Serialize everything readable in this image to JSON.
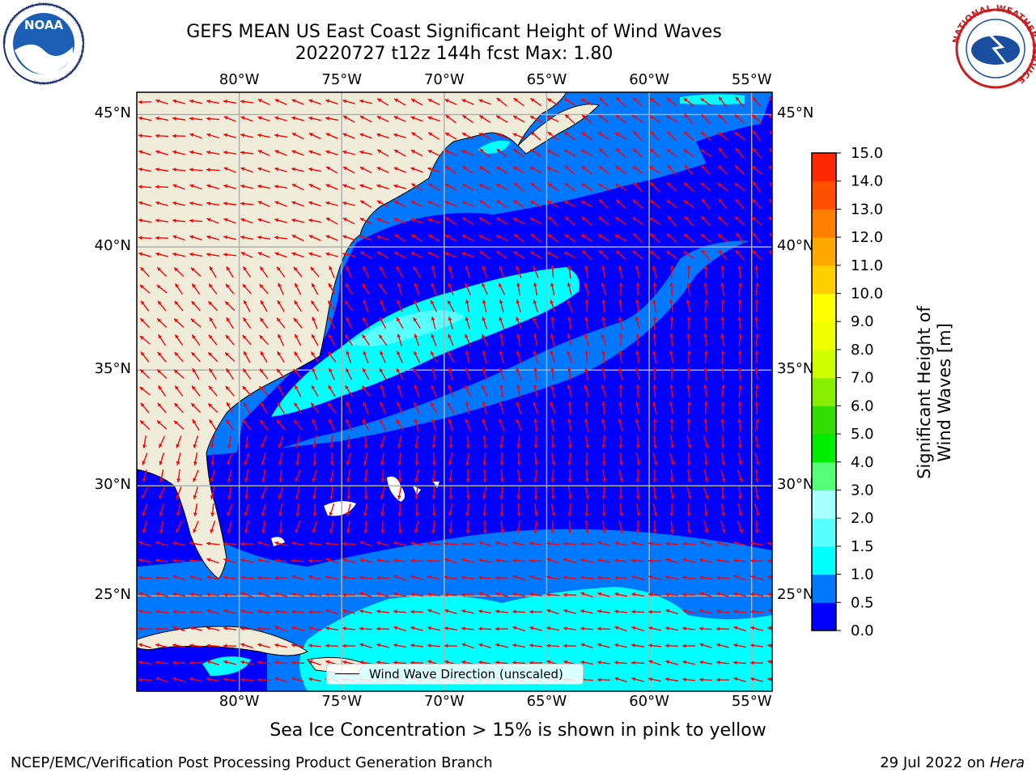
{
  "title": {
    "line1": "GEFS MEAN US East Coast Significant Height of Wind Waves",
    "line2": "20220727 t12z 144h fcst   Max: 1.80"
  },
  "map": {
    "lon_labels": [
      "80°W",
      "75°W",
      "70°W",
      "65°W",
      "60°W",
      "55°W"
    ],
    "lat_labels": [
      "45°N",
      "40°N",
      "35°N",
      "30°N",
      "25°N"
    ],
    "lon_range": [
      -85,
      -54
    ],
    "lat_range": [
      20.5,
      45.8
    ],
    "colors": {
      "land": "#efedda",
      "level_0_0": "#0000fb",
      "level_0_5": "#0078ff",
      "level_1_0": "#00ffff",
      "level_1_5": "#58ffff",
      "arrows": "#ff0000",
      "grid": "#b0b0b0"
    },
    "legend": "Wind Wave Direction (unscaled)"
  },
  "colorbar": {
    "label": "Significant Height of Wind Waves [m]",
    "ticks": [
      "0.0",
      "0.5",
      "1.0",
      "1.5",
      "2.0",
      "3.0",
      "4.0",
      "5.0",
      "6.0",
      "7.0",
      "8.0",
      "9.0",
      "10.0",
      "11.0",
      "12.0",
      "13.0",
      "14.0",
      "15.0"
    ],
    "colors": [
      "#0000fb",
      "#0078ff",
      "#00ffff",
      "#58ffff",
      "#a8ffff",
      "#55ff77",
      "#00ee00",
      "#33dd00",
      "#88ee00",
      "#ccff00",
      "#eeff00",
      "#ffff00",
      "#ffd000",
      "#ffa800",
      "#ff8000",
      "#ff5000",
      "#ff2800"
    ]
  },
  "footnote": "Sea Ice Concentration > 15% is shown in pink to yellow",
  "footer": {
    "left": "NCEP/EMC/Verification Post Processing Product Generation Branch",
    "right_date": "29 Jul 2022 on",
    "right_host": "Hera"
  },
  "logos": {
    "left": "NOAA",
    "left_ring": "NATIONAL OCEANIC AND ATMOSPHERIC ADMINISTRATION · U.S. DEPARTMENT OF COMMERCE",
    "right_ring": "NATIONAL WEATHER SERVICE"
  }
}
